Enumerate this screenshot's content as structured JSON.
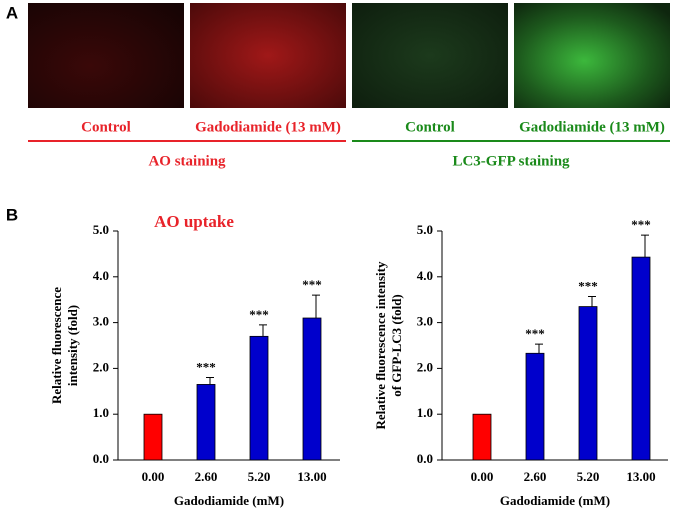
{
  "panel_a": {
    "label": "A",
    "images": [
      {
        "caption": "Control",
        "color": "#e8232a"
      },
      {
        "caption": "Gadodiamide (13 mM)",
        "color": "#e8232a"
      },
      {
        "caption": "Control",
        "color": "#1a8a1a"
      },
      {
        "caption": "Gadodiamide (13 mM)",
        "color": "#1a8a1a"
      }
    ],
    "groups": [
      {
        "label": "AO staining",
        "color": "#e8232a"
      },
      {
        "label": "LC3-GFP staining",
        "color": "#1a8a1a"
      }
    ]
  },
  "panel_b": {
    "label": "B"
  },
  "chart_data": [
    {
      "type": "bar",
      "title": "AO uptake",
      "ylabel": [
        "Relative fluorescence",
        "intensity (fold)"
      ],
      "xlabel": "Gadodiamide (mM)",
      "categories": [
        "0.00",
        "2.60",
        "5.20",
        "13.00"
      ],
      "values": [
        1.0,
        1.65,
        2.7,
        3.1
      ],
      "errors": [
        0,
        0.15,
        0.25,
        0.5
      ],
      "annotations": [
        null,
        "***",
        "***",
        "***"
      ],
      "colors": [
        "#ff0000",
        "#0000cc",
        "#0000cc",
        "#0000cc"
      ],
      "ylim": [
        0,
        5
      ],
      "yticks": [
        {
          "value": 0,
          "label": "0.0"
        },
        {
          "value": 1,
          "label": "1.0"
        },
        {
          "value": 2,
          "label": "2.0"
        },
        {
          "value": 3,
          "label": "3.0"
        },
        {
          "value": 4,
          "label": "4.0"
        },
        {
          "value": 5,
          "label": "5.0"
        }
      ]
    },
    {
      "type": "bar",
      "ylabel": [
        "Relative fluorescence intensity",
        "of GFP-LC3 (fold)"
      ],
      "xlabel": "Gadodiamide (mM)",
      "categories": [
        "0.00",
        "2.60",
        "5.20",
        "13.00"
      ],
      "values": [
        1.0,
        2.33,
        3.35,
        4.43
      ],
      "errors": [
        0,
        0.2,
        0.22,
        0.48
      ],
      "annotations": [
        null,
        "***",
        "***",
        "***"
      ],
      "colors": [
        "#ff0000",
        "#0000cc",
        "#0000cc",
        "#0000cc"
      ],
      "ylim": [
        0,
        5
      ],
      "yticks": [
        {
          "value": 0,
          "label": "0.0"
        },
        {
          "value": 1,
          "label": "1.0"
        },
        {
          "value": 2,
          "label": "2.0"
        },
        {
          "value": 3,
          "label": "3.0"
        },
        {
          "value": 4,
          "label": "4.0"
        },
        {
          "value": 5,
          "label": "5.0"
        }
      ]
    }
  ]
}
